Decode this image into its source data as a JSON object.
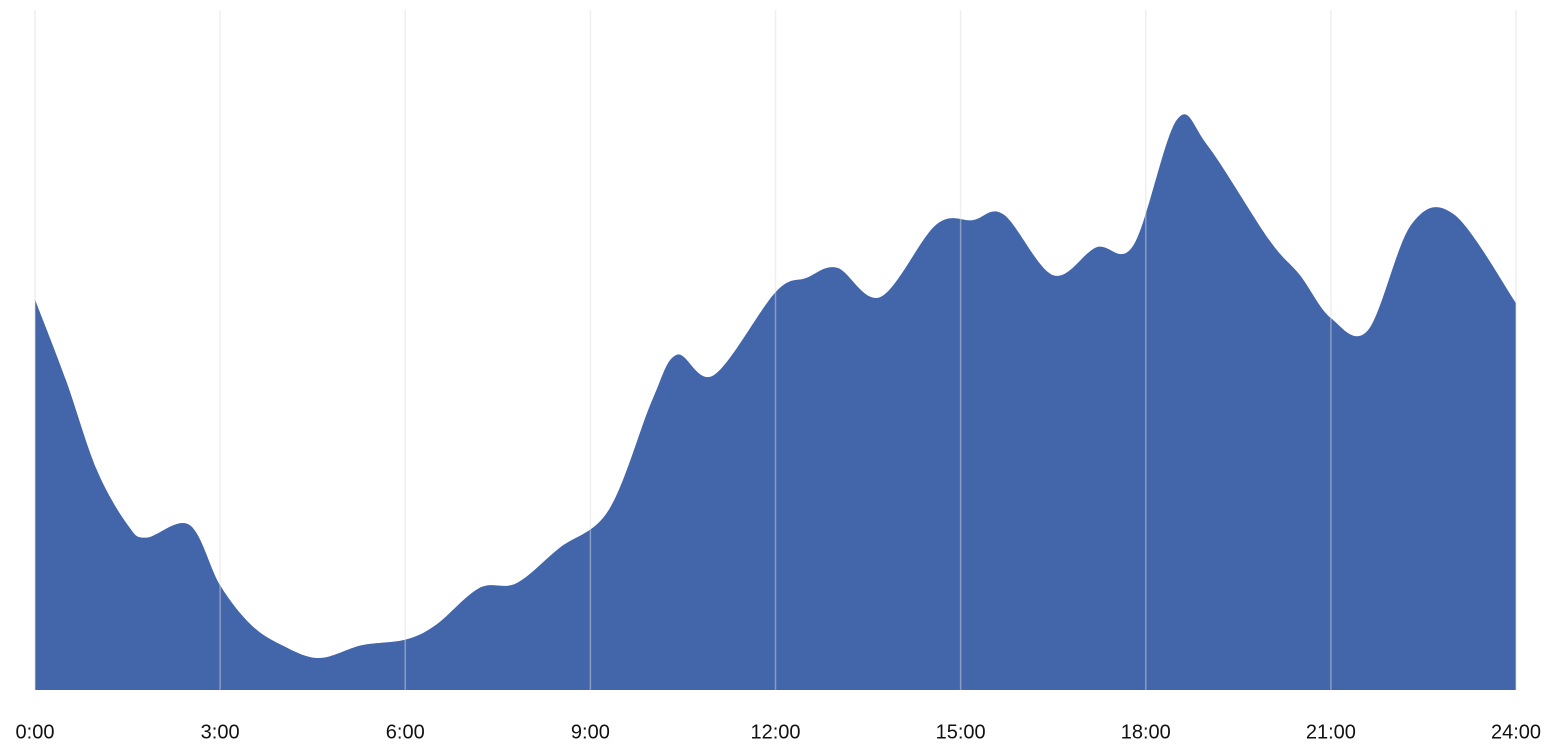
{
  "chart_data": {
    "type": "area",
    "color": "#4366aa",
    "grid": true,
    "x": [
      0,
      0.5,
      1,
      1.5,
      1.8,
      2.5,
      3,
      3.5,
      4,
      4.6,
      5.3,
      6,
      6.5,
      7.2,
      7.8,
      8.5,
      9.3,
      10,
      10.4,
      11,
      12,
      12.5,
      13,
      13.7,
      14.6,
      15.2,
      15.7,
      16.5,
      17.2,
      17.8,
      18.5,
      19,
      20,
      20.5,
      21,
      21.6,
      22.3,
      23,
      24
    ],
    "values": [
      57.4,
      45.6,
      32.4,
      24.3,
      22.4,
      24.3,
      15.4,
      9.6,
      6.6,
      4.7,
      6.6,
      7.4,
      9.6,
      15.0,
      15.7,
      20.9,
      26.5,
      42.6,
      49.3,
      46.3,
      58.5,
      60.6,
      62.1,
      57.8,
      68.4,
      69.1,
      69.9,
      61.0,
      65.1,
      65.4,
      83.8,
      80.1,
      66.2,
      61.0,
      54.7,
      52.9,
      68.4,
      69.9,
      56.9
    ],
    "xlim": [
      0,
      24
    ],
    "xticks": [
      {
        "value": 0,
        "label": "0:00"
      },
      {
        "value": 3,
        "label": "3:00"
      },
      {
        "value": 6,
        "label": "6:00"
      },
      {
        "value": 9,
        "label": "9:00"
      },
      {
        "value": 12,
        "label": "12:00"
      },
      {
        "value": 15,
        "label": "15:00"
      },
      {
        "value": 18,
        "label": "18:00"
      },
      {
        "value": 21,
        "label": "21:00"
      },
      {
        "value": 24,
        "label": "24:00"
      }
    ],
    "ylim": [
      0,
      100
    ]
  }
}
